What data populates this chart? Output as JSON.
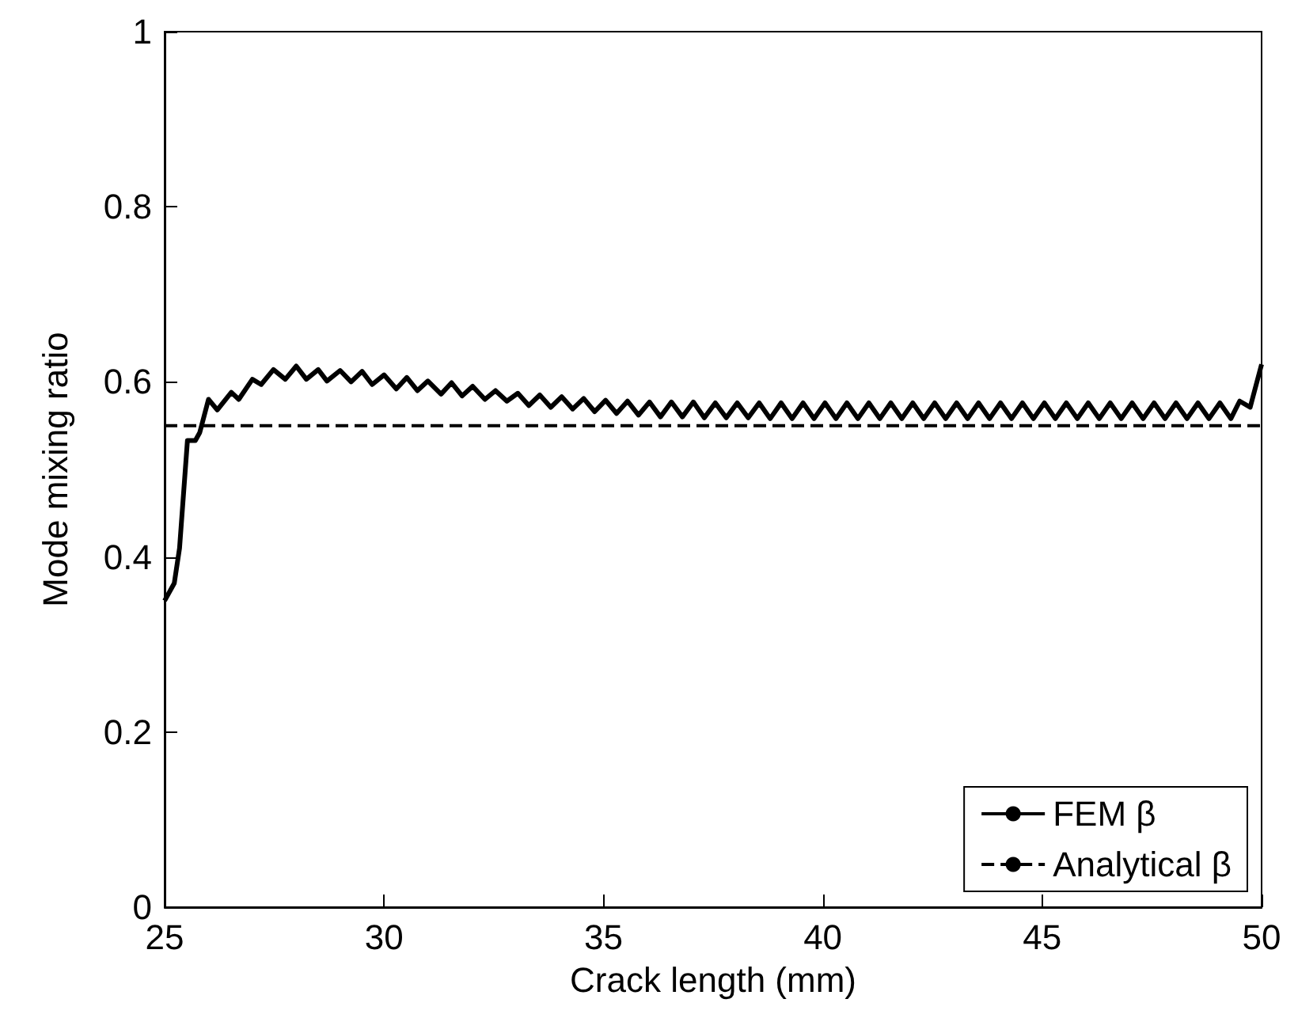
{
  "chart_data": {
    "type": "line",
    "xlabel": "Crack length (mm)",
    "ylabel": "Mode mixing ratio",
    "xlim": [
      25,
      50
    ],
    "xticks": [
      25,
      30,
      35,
      40,
      45,
      50
    ],
    "ylim": [
      0,
      1
    ],
    "yticks": [
      0,
      0.2,
      0.4,
      0.6,
      0.8,
      1
    ],
    "grid": false,
    "legend": "bottom right",
    "marker": "none",
    "series": [
      {
        "name": "FEM β",
        "color": "#000000",
        "line_style": "solid",
        "x": [
          25.0,
          25.22,
          25.34,
          25.52,
          25.7,
          25.8,
          26.0,
          26.2,
          26.52,
          26.69,
          27.0,
          27.2,
          27.48,
          27.75,
          28.0,
          28.23,
          28.5,
          28.7,
          29.0,
          29.25,
          29.5,
          29.73,
          30.0,
          30.28,
          30.52,
          30.76,
          31.0,
          31.3,
          31.54,
          31.78,
          32.02,
          32.3,
          32.54,
          32.8,
          33.05,
          33.3,
          33.55,
          33.8,
          34.05,
          34.3,
          34.55,
          34.8,
          35.05,
          35.3,
          35.55,
          35.8,
          36.05,
          36.3,
          36.55,
          36.8,
          37.05,
          37.3,
          37.55,
          37.8,
          38.05,
          38.3,
          38.55,
          38.8,
          39.05,
          39.3,
          39.55,
          39.8,
          40.05,
          40.3,
          40.55,
          40.8,
          41.05,
          41.3,
          41.55,
          41.8,
          42.05,
          42.3,
          42.55,
          42.8,
          43.05,
          43.3,
          43.55,
          43.8,
          44.05,
          44.3,
          44.55,
          44.8,
          45.05,
          45.3,
          45.55,
          45.8,
          46.05,
          46.3,
          46.55,
          46.8,
          47.05,
          47.3,
          47.55,
          47.8,
          48.05,
          48.3,
          48.55,
          48.8,
          49.05,
          49.3,
          49.5,
          49.74,
          50.0
        ],
        "values": [
          0.35,
          0.37,
          0.41,
          0.533,
          0.533,
          0.542,
          0.58,
          0.568,
          0.588,
          0.58,
          0.603,
          0.597,
          0.614,
          0.603,
          0.618,
          0.603,
          0.614,
          0.601,
          0.613,
          0.6,
          0.612,
          0.597,
          0.608,
          0.592,
          0.605,
          0.59,
          0.601,
          0.586,
          0.599,
          0.584,
          0.595,
          0.58,
          0.59,
          0.578,
          0.587,
          0.573,
          0.585,
          0.571,
          0.583,
          0.569,
          0.581,
          0.566,
          0.579,
          0.564,
          0.578,
          0.562,
          0.577,
          0.56,
          0.577,
          0.56,
          0.577,
          0.559,
          0.576,
          0.559,
          0.576,
          0.559,
          0.576,
          0.558,
          0.576,
          0.558,
          0.576,
          0.558,
          0.576,
          0.558,
          0.576,
          0.558,
          0.576,
          0.558,
          0.576,
          0.558,
          0.576,
          0.558,
          0.576,
          0.558,
          0.576,
          0.558,
          0.576,
          0.558,
          0.576,
          0.558,
          0.576,
          0.558,
          0.576,
          0.558,
          0.576,
          0.558,
          0.576,
          0.558,
          0.576,
          0.558,
          0.576,
          0.558,
          0.576,
          0.558,
          0.576,
          0.558,
          0.576,
          0.558,
          0.576,
          0.558,
          0.578,
          0.571,
          0.62
        ]
      },
      {
        "name": "Analytical β",
        "color": "#000000",
        "line_style": "dashed",
        "x": [
          25,
          50
        ],
        "values": [
          0.55,
          0.55
        ]
      }
    ]
  }
}
